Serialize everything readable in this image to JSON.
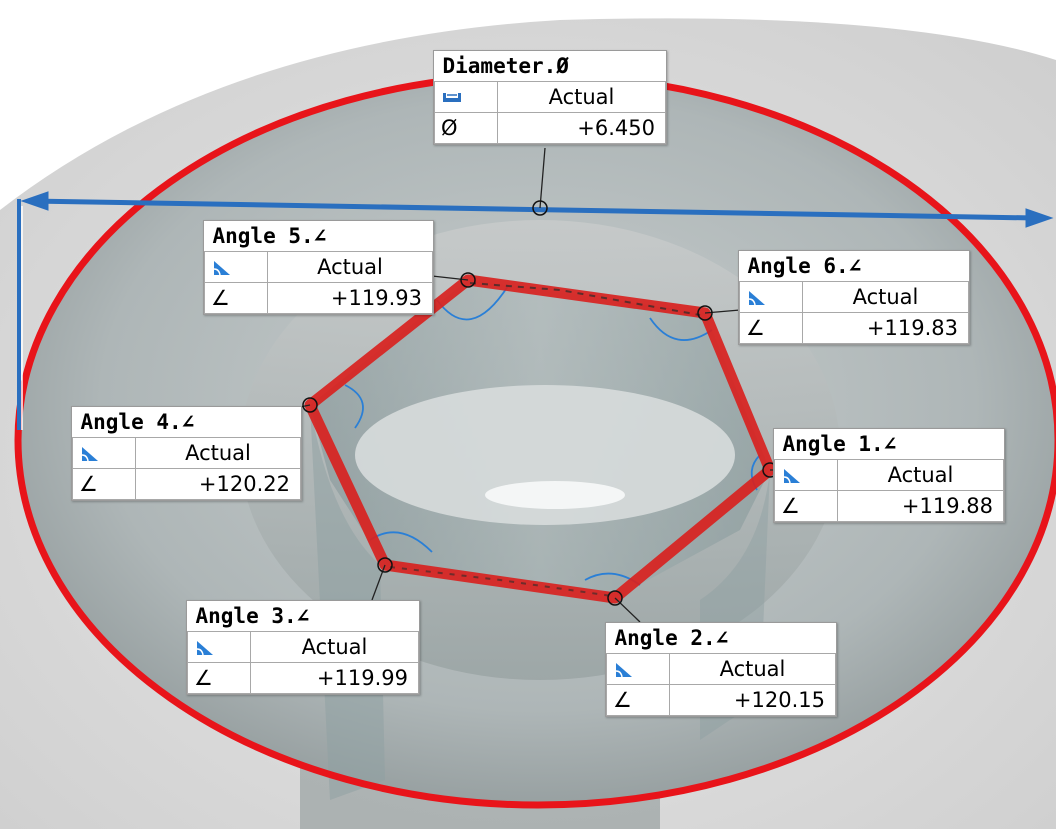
{
  "diameter": {
    "title": "Diameter.Ø",
    "column_label": "Actual",
    "symbol": "Ø",
    "value": "+6.450",
    "icon": "diameter-measure-icon"
  },
  "angles": [
    {
      "title": "Angle 1.∠",
      "column_label": "Actual",
      "symbol": "∠",
      "value": "+119.88",
      "icon": "angle-measure-icon"
    },
    {
      "title": "Angle 2.∠",
      "column_label": "Actual",
      "symbol": "∠",
      "value": "+120.15",
      "icon": "angle-measure-icon"
    },
    {
      "title": "Angle 3.∠",
      "column_label": "Actual",
      "symbol": "∠",
      "value": "+119.99",
      "icon": "angle-measure-icon"
    },
    {
      "title": "Angle 4.∠",
      "column_label": "Actual",
      "symbol": "∠",
      "value": "+120.22",
      "icon": "angle-measure-icon"
    },
    {
      "title": "Angle 5.∠",
      "column_label": "Actual",
      "symbol": "∠",
      "value": "+119.93",
      "icon": "angle-measure-icon"
    },
    {
      "title": "Angle 6.∠",
      "column_label": "Actual",
      "symbol": "∠",
      "value": "+119.83",
      "icon": "angle-measure-icon"
    }
  ],
  "colors": {
    "ring": "#e8141a",
    "hexagon": "#d8221f",
    "dimension_line": "#2a6fbf",
    "angle_arc": "#2a7fd6",
    "part_surface": "#b9c1c3"
  }
}
